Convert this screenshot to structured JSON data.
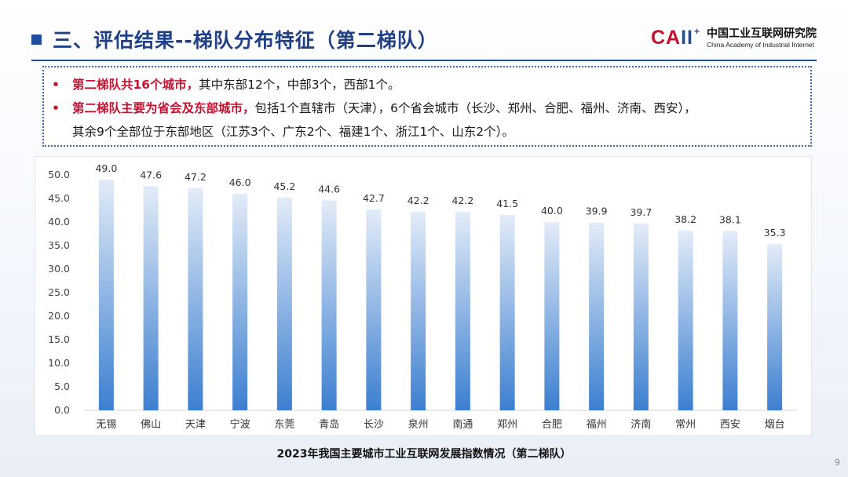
{
  "header": {
    "title": "三、评估结果--梯队分布特征（第二梯队）",
    "logo_mark_main": "CA",
    "logo_mark_accent": "II",
    "logo_mark_plus": "+",
    "logo_cn": "中国工业互联网研究院",
    "logo_en": "China Academy of Industrial Internet"
  },
  "bullets": [
    {
      "highlight": "第二梯队共16个城市，",
      "text": "其中东部12个，中部3个，西部1个。"
    },
    {
      "highlight": "第二梯队主要为省会及东部城市，",
      "text": "包括1个直辖市（天津），6个省会城市（长沙、郑州、合肥、福州、济南、西安），",
      "continuation": "其余9个全部位于东部地区（江苏3个、广东2个、福建1个、浙江1个、山东2个）。"
    }
  ],
  "bullet_marker": "•",
  "chart_data": {
    "type": "bar",
    "title": "2023年我国主要城市工业互联网发展指数情况（第二梯队）",
    "categories": [
      "无锡",
      "佛山",
      "天津",
      "宁波",
      "东莞",
      "青岛",
      "长沙",
      "泉州",
      "南通",
      "郑州",
      "合肥",
      "福州",
      "济南",
      "常州",
      "西安",
      "烟台"
    ],
    "values": [
      49.0,
      47.6,
      47.2,
      46.0,
      45.2,
      44.6,
      42.7,
      42.2,
      42.2,
      41.5,
      40.0,
      39.9,
      39.7,
      38.2,
      38.1,
      35.3
    ],
    "value_labels": [
      "49.0",
      "47.6",
      "47.2",
      "46.0",
      "45.2",
      "44.6",
      "42.7",
      "42.2",
      "42.2",
      "41.5",
      "40.0",
      "39.9",
      "39.7",
      "38.2",
      "38.1",
      "35.3"
    ],
    "y_ticks": [
      "0.0",
      "5.0",
      "10.0",
      "15.0",
      "20.0",
      "25.0",
      "30.0",
      "35.0",
      "40.0",
      "45.0",
      "50.0"
    ],
    "ylim": [
      0,
      50
    ],
    "grid": false,
    "legend": "none",
    "bar_color_top": "#e3ecf8",
    "bar_color_bottom": "#3c7fd0"
  },
  "page_number": "9",
  "colors": {
    "title": "#1f3f86",
    "accent_red": "#c8102e",
    "brand_blue": "#1f4e9c"
  }
}
